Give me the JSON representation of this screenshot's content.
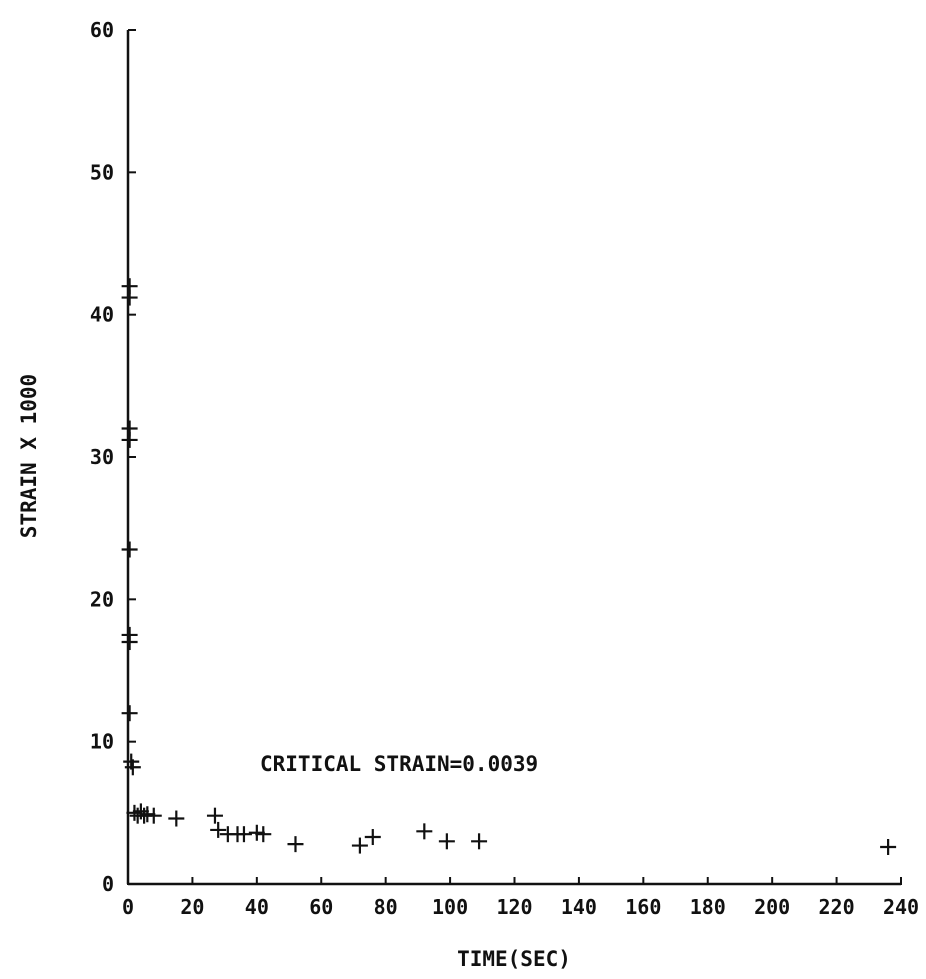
{
  "chart_data": {
    "type": "scatter",
    "title": "",
    "xlabel": "TIME(SEC)",
    "ylabel": "STRAIN X 1000",
    "xlim": [
      0,
      240
    ],
    "ylim": [
      0,
      60
    ],
    "x_ticks": [
      "0",
      "20",
      "40",
      "60",
      "80",
      "100",
      "120",
      "140",
      "160",
      "180",
      "200",
      "220",
      "240"
    ],
    "y_ticks": [
      "0",
      "10",
      "20",
      "30",
      "40",
      "50",
      "60"
    ],
    "grid": false,
    "marker": "plus",
    "annotation": "CRITICAL STRAIN=0.0039",
    "points": [
      {
        "x": 0.5,
        "y": 42.0
      },
      {
        "x": 0.5,
        "y": 41.2
      },
      {
        "x": 0.5,
        "y": 32.0
      },
      {
        "x": 0.5,
        "y": 31.2
      },
      {
        "x": 0.5,
        "y": 23.5
      },
      {
        "x": 0.5,
        "y": 17.5
      },
      {
        "x": 0.5,
        "y": 17.0
      },
      {
        "x": 0.5,
        "y": 12.0
      },
      {
        "x": 1.0,
        "y": 8.6
      },
      {
        "x": 1.5,
        "y": 8.2
      },
      {
        "x": 2.0,
        "y": 5.0
      },
      {
        "x": 3.0,
        "y": 4.8
      },
      {
        "x": 4.0,
        "y": 5.1
      },
      {
        "x": 5.0,
        "y": 4.8
      },
      {
        "x": 6.0,
        "y": 4.9
      },
      {
        "x": 8.0,
        "y": 4.8
      },
      {
        "x": 15.0,
        "y": 4.6
      },
      {
        "x": 27.0,
        "y": 4.8
      },
      {
        "x": 28.0,
        "y": 3.8
      },
      {
        "x": 31.0,
        "y": 3.5
      },
      {
        "x": 34.0,
        "y": 3.5
      },
      {
        "x": 36.0,
        "y": 3.5
      },
      {
        "x": 40.0,
        "y": 3.6
      },
      {
        "x": 42.0,
        "y": 3.5
      },
      {
        "x": 52.0,
        "y": 2.8
      },
      {
        "x": 72.0,
        "y": 2.7
      },
      {
        "x": 76.0,
        "y": 3.3
      },
      {
        "x": 92.0,
        "y": 3.7
      },
      {
        "x": 99.0,
        "y": 3.0
      },
      {
        "x": 109.0,
        "y": 3.0
      },
      {
        "x": 236.0,
        "y": 2.6
      }
    ]
  }
}
